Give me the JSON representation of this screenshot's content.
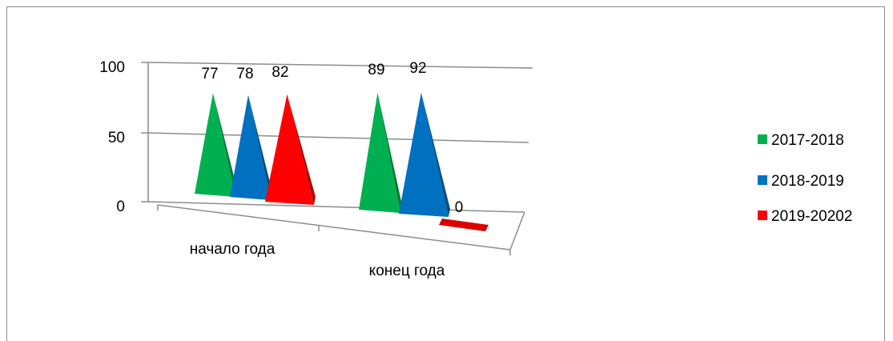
{
  "chart_data": {
    "type": "bar",
    "shape": "pyramid-3d",
    "categories": [
      "начало года",
      "конец года"
    ],
    "series": [
      {
        "name": "2017-2018",
        "values": [
          77,
          89
        ],
        "color": "#00b050"
      },
      {
        "name": "2018-2019",
        "values": [
          78,
          92
        ],
        "color": "#0070c0"
      },
      {
        "name": "2019-20202",
        "values": [
          82,
          0
        ],
        "color": "#ff0000"
      }
    ],
    "data_labels": [
      [
        "77",
        "89"
      ],
      [
        "78",
        "92"
      ],
      [
        "82",
        "0"
      ]
    ],
    "y_ticks": [
      "0",
      "50",
      "100"
    ],
    "ylim": [
      0,
      100
    ],
    "grid": true,
    "legend": "right"
  }
}
